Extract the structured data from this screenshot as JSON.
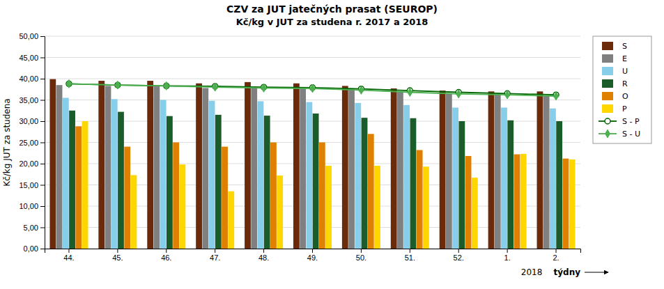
{
  "chart_data": {
    "type": "bar",
    "title": "CZV za JUT jatečných prasat (SEUROP)",
    "subtitle": "Kč/kg v JUT za studena r. 2017 a 2018",
    "ylabel": "Kč/kg JUT za studena",
    "xlabel": "týdny",
    "annotations": [
      {
        "text": "2018",
        "categories": [
          "1.",
          "2."
        ]
      }
    ],
    "categories": [
      "44.",
      "45.",
      "46.",
      "47.",
      "48.",
      "49.",
      "50.",
      "51.",
      "52.",
      "1.",
      "2."
    ],
    "series": [
      {
        "name": "S",
        "color": "#6B2A0A",
        "values": [
          39.9,
          39.5,
          39.5,
          38.9,
          39.2,
          38.9,
          38.3,
          37.7,
          37.2,
          37.0,
          37.0
        ]
      },
      {
        "name": "E",
        "color": "#808080",
        "values": [
          38.5,
          38.3,
          38.2,
          37.8,
          38.0,
          37.8,
          37.5,
          37.0,
          36.5,
          36.3,
          36.0
        ]
      },
      {
        "name": "U",
        "color": "#87CEEB",
        "values": [
          35.5,
          35.2,
          35.0,
          34.8,
          34.7,
          34.5,
          34.3,
          33.8,
          33.2,
          33.2,
          33.0
        ]
      },
      {
        "name": "R",
        "color": "#1A5C2A",
        "values": [
          32.5,
          32.2,
          31.2,
          31.5,
          31.3,
          31.8,
          30.8,
          30.7,
          30.0,
          30.2,
          30.0
        ]
      },
      {
        "name": "O",
        "color": "#E08000",
        "values": [
          28.8,
          24.0,
          25.0,
          24.0,
          25.0,
          25.0,
          27.0,
          23.2,
          21.8,
          22.2,
          21.2
        ]
      },
      {
        "name": "P",
        "color": "#FFD700",
        "values": [
          30.0,
          17.3,
          19.8,
          13.5,
          17.2,
          19.5,
          19.5,
          19.3,
          16.7,
          22.3,
          21.0
        ]
      },
      {
        "name": "S - P",
        "type": "line",
        "color": "#006400",
        "marker": "circle",
        "values": [
          38.8,
          38.5,
          38.3,
          38.2,
          38.0,
          37.9,
          37.6,
          37.2,
          36.8,
          36.5,
          36.2
        ]
      },
      {
        "name": "S - U",
        "type": "line",
        "color": "#4CAF50",
        "marker": "diamond",
        "values": [
          38.8,
          38.5,
          38.3,
          38.0,
          37.8,
          37.7,
          37.3,
          36.8,
          36.4,
          36.2,
          35.9
        ]
      }
    ],
    "ylim": [
      0,
      50
    ],
    "yticks": [
      {
        "value": 0,
        "label": "0,00"
      },
      {
        "value": 5,
        "label": "5,00"
      },
      {
        "value": 10,
        "label": "10,00"
      },
      {
        "value": 15,
        "label": "15,00"
      },
      {
        "value": 20,
        "label": "20,00"
      },
      {
        "value": 25,
        "label": "25,00"
      },
      {
        "value": 30,
        "label": "30,00"
      },
      {
        "value": 35,
        "label": "35,00"
      },
      {
        "value": 40,
        "label": "40,00"
      },
      {
        "value": 45,
        "label": "45,00"
      },
      {
        "value": 50,
        "label": "50,00"
      }
    ],
    "grid": true,
    "legend": "right"
  }
}
